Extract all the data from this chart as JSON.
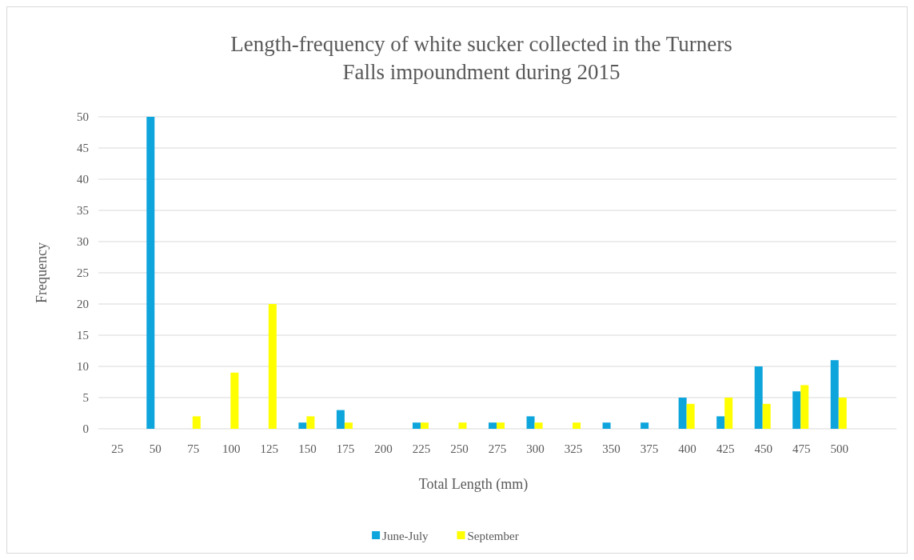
{
  "chart_data": {
    "type": "bar",
    "title": "Length-frequency of white sucker collected in the Turners Falls impoundment during 2015",
    "xlabel": "Total Length (mm)",
    "ylabel": "Frequency",
    "categories": [
      "25",
      "50",
      "75",
      "100",
      "125",
      "150",
      "175",
      "200",
      "225",
      "250",
      "275",
      "300",
      "325",
      "350",
      "375",
      "400",
      "425",
      "450",
      "475",
      "500",
      null
    ],
    "series": [
      {
        "name": "June-July",
        "color": "#0ea5dc",
        "values": [
          0,
          50,
          0,
          0,
          0,
          1,
          3,
          0,
          1,
          0,
          1,
          2,
          0,
          1,
          1,
          5,
          2,
          10,
          6,
          11,
          null
        ]
      },
      {
        "name": "September",
        "color": "#ffff00",
        "values": [
          0,
          0,
          2,
          9,
          20,
          2,
          1,
          0,
          1,
          1,
          1,
          1,
          1,
          0,
          0,
          4,
          5,
          4,
          7,
          5,
          null
        ]
      }
    ],
    "ylim": [
      0,
      50
    ],
    "yticks": [
      0,
      5,
      10,
      15,
      20,
      25,
      30,
      35,
      40,
      45,
      50
    ],
    "grid": "y",
    "legend": "bottom"
  }
}
